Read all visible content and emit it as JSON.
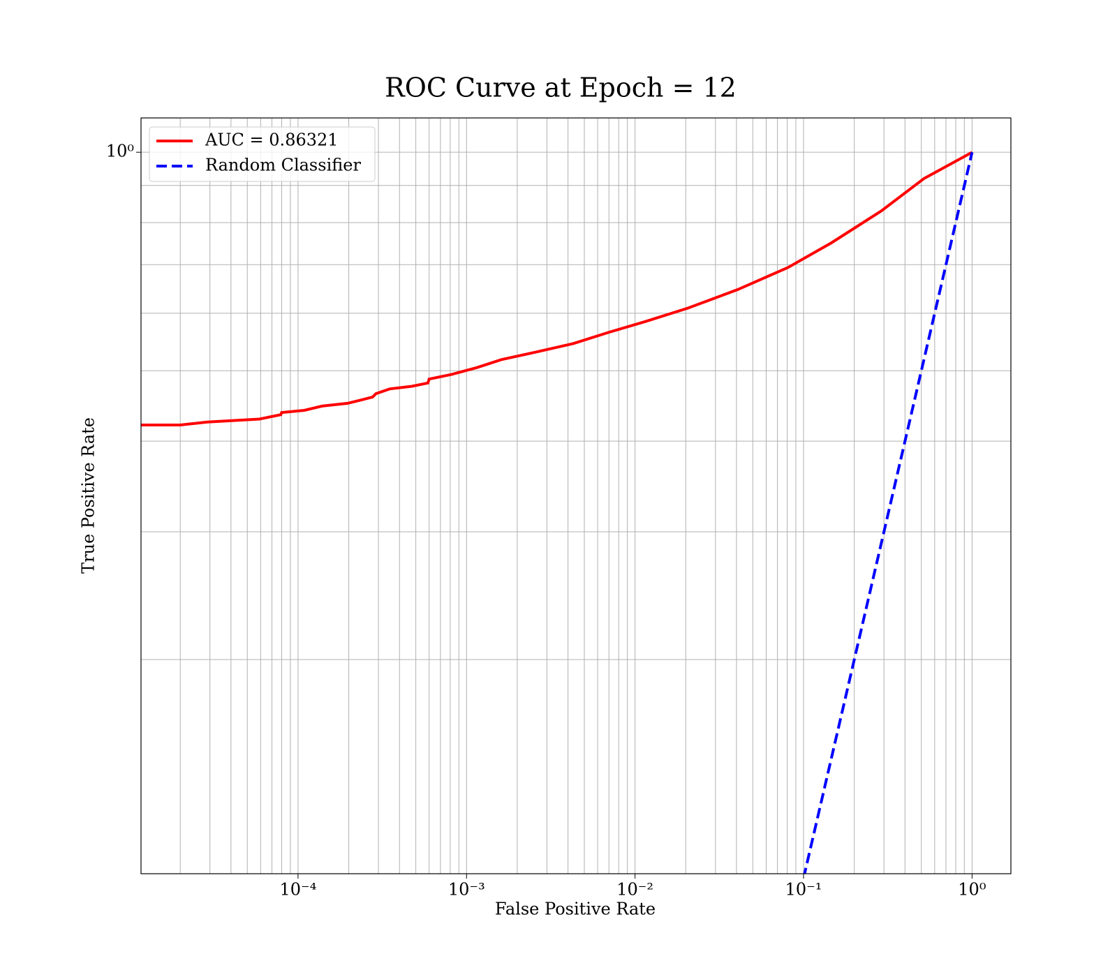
{
  "chart_data": {
    "type": "line",
    "title": "ROC Curve at Epoch = 12",
    "x_label": "False Positive Rate",
    "y_label": "True Positive Rate",
    "xscale": "log",
    "yscale": "log",
    "grid": true,
    "legend": "upper left",
    "xlim": [
      1.17e-05,
      1.7
    ],
    "ylim": [
      0.1014,
      1.115
    ],
    "xticks": [
      {
        "value": 0.0001,
        "label": "10⁻⁴"
      },
      {
        "value": 0.001,
        "label": "10⁻³"
      },
      {
        "value": 0.01,
        "label": "10⁻²"
      },
      {
        "value": 0.1,
        "label": "10⁻¹"
      },
      {
        "value": 1,
        "label": "10⁰"
      }
    ],
    "xticks_minor": [
      2e-05,
      3e-05,
      4e-05,
      5e-05,
      6e-05,
      7e-05,
      8e-05,
      9e-05,
      0.0002,
      0.0003,
      0.0004,
      0.0005,
      0.0006,
      0.0007,
      0.0008,
      0.0009,
      0.002,
      0.003,
      0.004,
      0.005,
      0.006,
      0.007,
      0.008,
      0.009,
      0.02,
      0.03,
      0.04,
      0.05,
      0.06,
      0.07,
      0.08,
      0.09,
      0.2,
      0.3,
      0.4,
      0.5,
      0.6,
      0.7,
      0.8,
      0.9
    ],
    "yticks": [
      {
        "value": 1,
        "label": "10⁰"
      }
    ],
    "yticks_minor": [
      0.2,
      0.3,
      0.4,
      0.5,
      0.6,
      0.7,
      0.8,
      0.9
    ],
    "series": [
      {
        "name": "AUC = 0.86321",
        "color": "#ff0000",
        "dash": false,
        "x": [
          1.17e-05,
          2e-05,
          2.9e-05,
          5.9e-05,
          7.9e-05,
          8e-05,
          0.000109,
          0.000139,
          0.000197,
          0.00023,
          0.000277,
          0.00029,
          0.00035,
          0.000475,
          0.00059,
          0.0006,
          0.00081,
          0.00115,
          0.00161,
          0.00263,
          0.0043,
          0.007,
          0.0114,
          0.0206,
          0.0407,
          0.081,
          0.146,
          0.289,
          0.519,
          1
        ],
        "values": [
          0.421,
          0.421,
          0.425,
          0.429,
          0.435,
          0.438,
          0.441,
          0.447,
          0.451,
          0.455,
          0.46,
          0.465,
          0.472,
          0.476,
          0.481,
          0.487,
          0.494,
          0.505,
          0.518,
          0.531,
          0.545,
          0.565,
          0.584,
          0.61,
          0.647,
          0.694,
          0.75,
          0.83,
          0.92,
          1
        ]
      },
      {
        "name": "Random Classifier",
        "color": "#0000ff",
        "dash": true,
        "x": [
          0.1,
          1
        ],
        "values": [
          0.1,
          1
        ]
      }
    ]
  }
}
